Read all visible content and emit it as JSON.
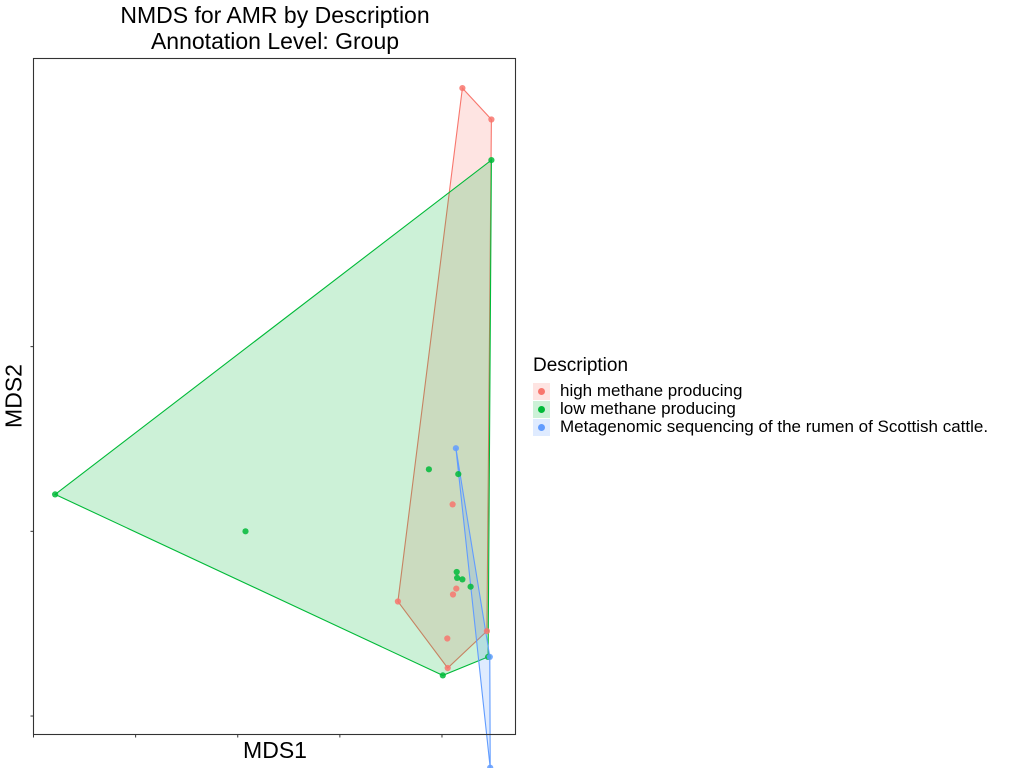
{
  "chart_data": {
    "type": "scatter",
    "title": "NMDS for AMR by Description",
    "subtitle": "Annotation Level: Group",
    "xlabel": "MDS1",
    "ylabel": "MDS2",
    "x_tick_labels": [],
    "y_tick_labels": [],
    "xlim": [
      -0.5,
      0.68
    ],
    "ylim": [
      -0.55,
      1.28
    ],
    "grid": false,
    "hulls": true,
    "legend_title": "Description",
    "legend_position": "right",
    "series": [
      {
        "name": "high methane producing",
        "color": "#F8766D",
        "points": [
          {
            "x": 0.55,
            "y": 1.2
          },
          {
            "x": 0.621,
            "y": 1.115
          },
          {
            "x": 0.392,
            "y": -0.19
          },
          {
            "x": 0.526,
            "y": 0.073
          },
          {
            "x": 0.535,
            "y": -0.155
          },
          {
            "x": 0.527,
            "y": -0.171
          },
          {
            "x": 0.513,
            "y": -0.29
          },
          {
            "x": 0.514,
            "y": -0.37
          },
          {
            "x": 0.61,
            "y": -0.27
          }
        ]
      },
      {
        "name": "low methane producing",
        "color": "#00BA38",
        "points": [
          {
            "x": 0.621,
            "y": 1.005
          },
          {
            "x": -0.447,
            "y": 0.1
          },
          {
            "x": 0.019,
            "y": 0.0
          },
          {
            "x": 0.468,
            "y": 0.168
          },
          {
            "x": 0.54,
            "y": 0.155
          },
          {
            "x": 0.536,
            "y": -0.11
          },
          {
            "x": 0.537,
            "y": -0.126
          },
          {
            "x": 0.55,
            "y": -0.13
          },
          {
            "x": 0.57,
            "y": -0.15
          },
          {
            "x": 0.502,
            "y": -0.39
          },
          {
            "x": 0.613,
            "y": -0.34
          }
        ]
      },
      {
        "name": "Metagenomic sequencing of the rumen of Scottish cattle.",
        "color": "#619CFF",
        "points": [
          {
            "x": 0.534,
            "y": 0.225
          },
          {
            "x": 0.617,
            "y": -0.34
          },
          {
            "x": 0.618,
            "y": -0.64
          }
        ]
      }
    ]
  }
}
